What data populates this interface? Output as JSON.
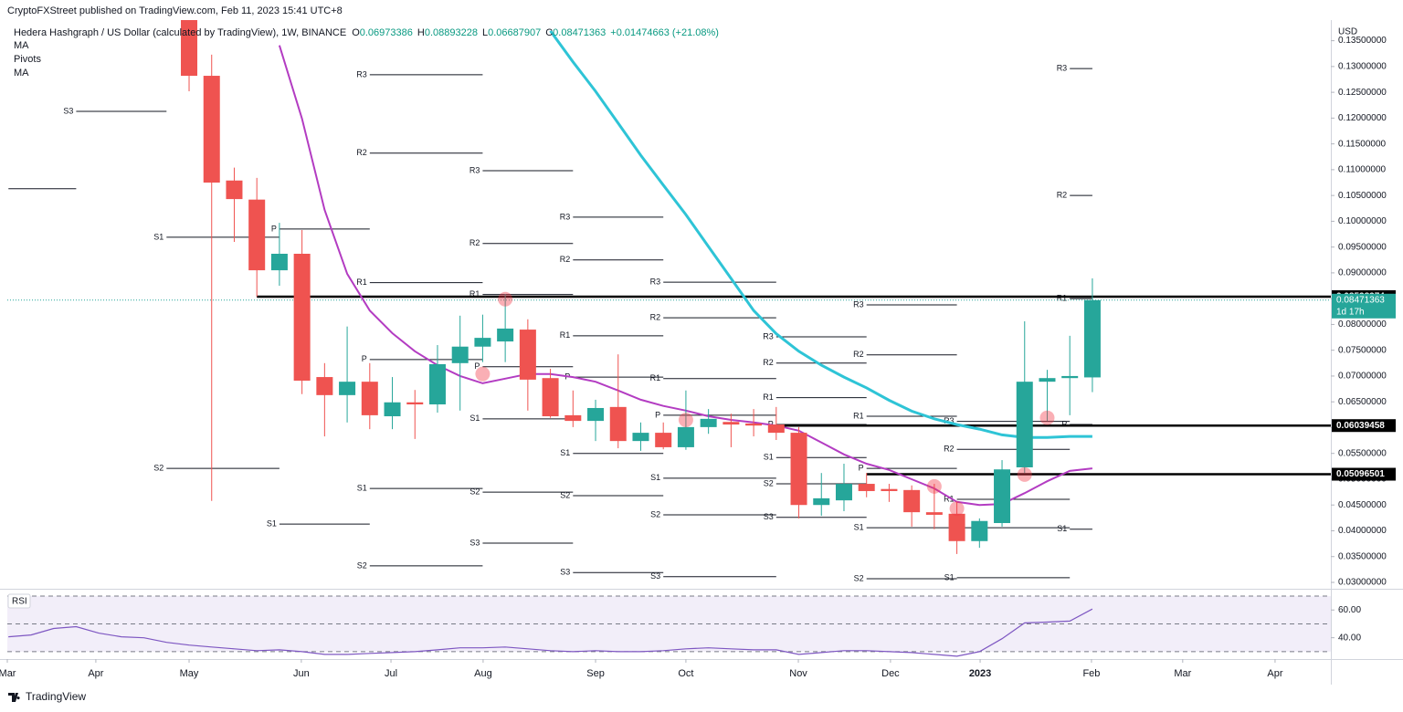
{
  "header": {
    "publisher": "CryptoFXStreet published on TradingView.com, Feb 11, 2023 15:41 UTC+8",
    "symbol": "Hedera Hashgraph / US Dollar (calculated by TradingView), 1W, BINANCE",
    "ohlc": [
      {
        "label": "O",
        "value": 0.06973386
      },
      {
        "label": "H",
        "value": 0.08893228
      },
      {
        "label": "L",
        "value": 0.06687907
      },
      {
        "label": "C",
        "value": 0.08471363
      }
    ],
    "change": "+0.01474663 (+21.08%)"
  },
  "chart_data": [
    {
      "type": "candlestick",
      "currency": "USD",
      "pivots_name": "Pivots",
      "up_color": "#26a69a",
      "down_color": "#ef5350",
      "x": [
        0,
        1,
        2,
        3,
        4,
        5,
        6,
        7,
        8,
        9,
        10,
        11,
        12,
        13,
        14,
        15,
        16,
        17,
        18,
        19,
        20,
        21,
        22,
        23,
        24,
        25,
        26,
        27,
        28,
        29,
        30,
        31,
        32,
        33,
        34,
        35,
        36,
        37,
        38,
        39,
        40
      ],
      "open": [
        0.139,
        0.1282,
        0.1079,
        0.1042,
        0.0905,
        0.0937,
        0.0698,
        0.0663,
        0.0689,
        0.0622,
        0.0649,
        0.0645,
        0.0725,
        0.0757,
        0.0767,
        0.079,
        0.0696,
        0.0624,
        0.0613,
        0.064,
        0.0574,
        0.059,
        0.0562,
        0.0601,
        0.0611,
        0.0608,
        0.0606,
        0.059,
        0.045,
        0.0459,
        0.0491,
        0.0481,
        0.0479,
        0.0436,
        0.0433,
        0.038,
        0.0415,
        0.0523,
        0.0689,
        0.0696,
        0.06973386
      ],
      "high": [
        0.142,
        0.1323,
        0.1104,
        0.1084,
        0.0997,
        0.0983,
        0.0725,
        0.0796,
        0.0725,
        0.0698,
        0.0673,
        0.076,
        0.0817,
        0.0819,
        0.0859,
        0.081,
        0.0714,
        0.0672,
        0.0654,
        0.0742,
        0.061,
        0.061,
        0.0672,
        0.0636,
        0.0627,
        0.0636,
        0.064,
        0.0601,
        0.0512,
        0.053,
        0.0512,
        0.0491,
        0.0488,
        0.0491,
        0.0456,
        0.0424,
        0.0537,
        0.0806,
        0.0712,
        0.0778,
        0.08893228
      ],
      "low": [
        0.1252,
        0.0458,
        0.096,
        0.0854,
        0.0875,
        0.0665,
        0.0583,
        0.061,
        0.0597,
        0.0597,
        0.0578,
        0.0629,
        0.0633,
        0.0727,
        0.0727,
        0.0633,
        0.0619,
        0.0601,
        0.0574,
        0.056,
        0.0555,
        0.0558,
        0.0557,
        0.0588,
        0.0562,
        0.0583,
        0.0576,
        0.0424,
        0.0429,
        0.0438,
        0.0465,
        0.0456,
        0.0408,
        0.0403,
        0.0355,
        0.0367,
        0.0408,
        0.0512,
        0.0613,
        0.0624,
        0.06687907
      ],
      "close": [
        0.1282,
        0.1075,
        0.1043,
        0.0905,
        0.0937,
        0.0691,
        0.0663,
        0.0689,
        0.0624,
        0.0649,
        0.0645,
        0.0723,
        0.0757,
        0.0774,
        0.0792,
        0.0693,
        0.0622,
        0.0613,
        0.0638,
        0.0574,
        0.059,
        0.0562,
        0.0601,
        0.0617,
        0.0606,
        0.0604,
        0.059,
        0.045,
        0.0463,
        0.0491,
        0.0477,
        0.0477,
        0.0436,
        0.0431,
        0.038,
        0.0419,
        0.0519,
        0.0689,
        0.0696,
        0.07,
        0.08471363
      ],
      "series": [
        {
          "name": "MA",
          "color": "#2ec4d6",
          "values": [
            null,
            null,
            null,
            null,
            null,
            null,
            null,
            null,
            null,
            null,
            null,
            null,
            null,
            null,
            null,
            null,
            0.1369,
            0.1309,
            0.1252,
            0.119,
            0.1128,
            0.107,
            0.1013,
            0.0951,
            0.0889,
            0.0827,
            0.0782,
            0.0748,
            0.0721,
            0.0698,
            0.0677,
            0.0653,
            0.0632,
            0.0617,
            0.0606,
            0.0597,
            0.0586,
            0.0581,
            0.0581,
            0.0583,
            0.0583
          ]
        },
        {
          "name": "MA",
          "color": "#b33cc2",
          "values": [
            null,
            null,
            null,
            null,
            0.1341,
            0.1199,
            0.1022,
            0.0898,
            0.0827,
            0.0783,
            0.0748,
            0.0721,
            0.07,
            0.0686,
            0.0695,
            0.0704,
            0.0704,
            0.0698,
            0.0689,
            0.0672,
            0.0654,
            0.0642,
            0.0633,
            0.0622,
            0.0615,
            0.061,
            0.0604,
            0.0594,
            0.0571,
            0.0548,
            0.053,
            0.0518,
            0.05,
            0.0482,
            0.0456,
            0.045,
            0.0452,
            0.0473,
            0.0496,
            0.0516,
            0.0521
          ]
        }
      ],
      "pivots": [
        {
          "label": null,
          "value": 0.1063,
          "from": -8,
          "to": -5
        },
        {
          "label": "S3",
          "value": 0.1213,
          "from": -5,
          "to": -1
        },
        {
          "label": "S1",
          "value": 0.0969,
          "from": -1,
          "to": 4
        },
        {
          "label": "S2",
          "value": 0.0521,
          "from": -1,
          "to": 4
        },
        {
          "label": "P",
          "value": 0.0985,
          "from": 4,
          "to": 8
        },
        {
          "label": "S1",
          "value": 0.0413,
          "from": 4,
          "to": 8
        },
        {
          "label": "R3",
          "value": 0.1284,
          "from": 8,
          "to": 13
        },
        {
          "label": "R2",
          "value": 0.1132,
          "from": 8,
          "to": 13
        },
        {
          "label": "R1",
          "value": 0.0881,
          "from": 8,
          "to": 13
        },
        {
          "label": "P",
          "value": 0.0732,
          "from": 8,
          "to": 13
        },
        {
          "label": "S1",
          "value": 0.0482,
          "from": 8,
          "to": 13
        },
        {
          "label": "S2",
          "value": 0.0332,
          "from": 8,
          "to": 13
        },
        {
          "label": "R3",
          "value": 0.1098,
          "from": 13,
          "to": 17
        },
        {
          "label": "R2",
          "value": 0.0957,
          "from": 13,
          "to": 17
        },
        {
          "label": "R1",
          "value": 0.0858,
          "from": 13,
          "to": 17
        },
        {
          "label": "P",
          "value": 0.0718,
          "from": 13,
          "to": 17
        },
        {
          "label": "S1",
          "value": 0.0617,
          "from": 13,
          "to": 17
        },
        {
          "label": "S2",
          "value": 0.0475,
          "from": 13,
          "to": 17
        },
        {
          "label": "S3",
          "value": 0.0376,
          "from": 13,
          "to": 17
        },
        {
          "label": "R3",
          "value": 0.1008,
          "from": 17,
          "to": 21
        },
        {
          "label": "R2",
          "value": 0.0925,
          "from": 17,
          "to": 21
        },
        {
          "label": "R1",
          "value": 0.0778,
          "from": 17,
          "to": 21
        },
        {
          "label": "P",
          "value": 0.0698,
          "from": 17,
          "to": 21
        },
        {
          "label": "S1",
          "value": 0.055,
          "from": 17,
          "to": 21
        },
        {
          "label": "S2",
          "value": 0.0468,
          "from": 17,
          "to": 21
        },
        {
          "label": "S3",
          "value": 0.0319,
          "from": 17,
          "to": 21
        },
        {
          "label": "R3",
          "value": 0.0882,
          "from": 21,
          "to": 26
        },
        {
          "label": "R2",
          "value": 0.0813,
          "from": 21,
          "to": 26
        },
        {
          "label": "R1",
          "value": 0.0695,
          "from": 21,
          "to": 26
        },
        {
          "label": "P",
          "value": 0.0624,
          "from": 21,
          "to": 26
        },
        {
          "label": "S1",
          "value": 0.0502,
          "from": 21,
          "to": 26
        },
        {
          "label": "S2",
          "value": 0.0431,
          "from": 21,
          "to": 26
        },
        {
          "label": "S3",
          "value": 0.0311,
          "from": 21,
          "to": 26
        },
        {
          "label": "R3",
          "value": 0.0776,
          "from": 26,
          "to": 30
        },
        {
          "label": "R2",
          "value": 0.0725,
          "from": 26,
          "to": 30
        },
        {
          "label": "R1",
          "value": 0.0658,
          "from": 26,
          "to": 30
        },
        {
          "label": "P",
          "value": 0.0606,
          "from": 26,
          "to": 30
        },
        {
          "label": "S1",
          "value": 0.0542,
          "from": 26,
          "to": 30
        },
        {
          "label": "S2",
          "value": 0.0491,
          "from": 26,
          "to": 30
        },
        {
          "label": "S3",
          "value": 0.0426,
          "from": 26,
          "to": 30
        },
        {
          "label": "R3",
          "value": 0.0838,
          "from": 30,
          "to": 34
        },
        {
          "label": "R2",
          "value": 0.0741,
          "from": 30,
          "to": 34
        },
        {
          "label": "R1",
          "value": 0.0622,
          "from": 30,
          "to": 34
        },
        {
          "label": "P",
          "value": 0.0521,
          "from": 30,
          "to": 34
        },
        {
          "label": "S1",
          "value": 0.0406,
          "from": 30,
          "to": 34
        },
        {
          "label": "S2",
          "value": 0.0307,
          "from": 30,
          "to": 34
        },
        {
          "label": "R3",
          "value": 0.0612,
          "from": 34,
          "to": 39
        },
        {
          "label": "R2",
          "value": 0.0558,
          "from": 34,
          "to": 39
        },
        {
          "label": "R1",
          "value": 0.0461,
          "from": 34,
          "to": 39
        },
        {
          "label": "P",
          "value": 0.0406,
          "from": 34,
          "to": 39
        },
        {
          "label": "S1",
          "value": 0.0309,
          "from": 34,
          "to": 39
        },
        {
          "label": "R3",
          "value": 0.1296,
          "from": 39,
          "to": 40
        },
        {
          "label": "R2",
          "value": 0.105,
          "from": 39,
          "to": 40
        },
        {
          "label": "R1",
          "value": 0.085,
          "from": 39,
          "to": 40
        },
        {
          "label": "P",
          "value": 0.0606,
          "from": 39,
          "to": 40
        },
        {
          "label": "S1",
          "value": 0.0403,
          "from": 39,
          "to": 40
        }
      ],
      "levels": [
        {
          "value": 0.08538374,
          "from": 3
        },
        {
          "value": 0.06039458,
          "from": 26
        },
        {
          "value": 0.05096501,
          "from": 30
        }
      ],
      "last": {
        "value": 0.08471363,
        "countdown": "1d 17h"
      },
      "markers": {
        "x": [
          13,
          14,
          22,
          33,
          34,
          37,
          38
        ],
        "values": [
          0.0704,
          0.0849,
          0.0615,
          0.0486,
          0.0443,
          0.0509,
          0.0619
        ]
      },
      "xlim": [
        -8.05,
        50.56
      ],
      "xticks": [
        {
          "value": -8.05,
          "label": "Mar"
        },
        {
          "value": -4.13,
          "label": "Apr"
        },
        {
          "value": 0,
          "label": "May"
        },
        {
          "value": 4.97,
          "label": "Jun"
        },
        {
          "value": 8.94,
          "label": "Jul"
        },
        {
          "value": 13.02,
          "label": "Aug"
        },
        {
          "value": 18,
          "label": "Sep"
        },
        {
          "value": 22,
          "label": "Oct"
        },
        {
          "value": 26.98,
          "label": "Nov"
        },
        {
          "value": 31.06,
          "label": "Dec"
        },
        {
          "value": 35.03,
          "label": "2023"
        },
        {
          "value": 39.96,
          "label": "Feb"
        },
        {
          "value": 44,
          "label": "Mar"
        },
        {
          "value": 48.09,
          "label": "Apr"
        }
      ],
      "ylim": [
        0.02876,
        0.139
      ],
      "yticks": [
        {
          "value": 0.03,
          "label": "0.03000000"
        },
        {
          "value": 0.035,
          "label": "0.03500000"
        },
        {
          "value": 0.04,
          "label": "0.04000000"
        },
        {
          "value": 0.045,
          "label": "0.04500000"
        },
        {
          "value": 0.05,
          "label": "0.05000000"
        },
        {
          "value": 0.055,
          "label": "0.05500000"
        },
        {
          "value": 0.06,
          "label": "0.06000000"
        },
        {
          "value": 0.065,
          "label": "0.06500000"
        },
        {
          "value": 0.07,
          "label": "0.07000000"
        },
        {
          "value": 0.075,
          "label": "0.07500000"
        },
        {
          "value": 0.08,
          "label": "0.08000000"
        },
        {
          "value": 0.085,
          "label": "0.08500000"
        },
        {
          "value": 0.09,
          "label": "0.09000000"
        },
        {
          "value": 0.095,
          "label": "0.09500000"
        },
        {
          "value": 0.1,
          "label": "0.10000000"
        },
        {
          "value": 0.105,
          "label": "0.10500000"
        },
        {
          "value": 0.11,
          "label": "0.11000000"
        },
        {
          "value": 0.115,
          "label": "0.11500000"
        },
        {
          "value": 0.12,
          "label": "0.12000000"
        },
        {
          "value": 0.125,
          "label": "0.12500000"
        },
        {
          "value": 0.13,
          "label": "0.13000000"
        },
        {
          "value": 0.135,
          "label": "0.13500000"
        }
      ]
    },
    {
      "type": "line",
      "title": "RSI",
      "color": "#7e57c2",
      "x": [
        -8,
        -7,
        -6,
        -5,
        -4,
        -3,
        -2,
        -1,
        0,
        1,
        2,
        3,
        4,
        5,
        6,
        7,
        8,
        9,
        10,
        11,
        12,
        13,
        14,
        15,
        16,
        17,
        18,
        19,
        20,
        21,
        22,
        23,
        24,
        25,
        26,
        27,
        28,
        29,
        30,
        31,
        32,
        33,
        34,
        35,
        36,
        37,
        38,
        39,
        40
      ],
      "values": [
        40.7,
        42.0,
        46.7,
        48.0,
        43.3,
        40.7,
        40.0,
        36.7,
        34.7,
        33.3,
        32.0,
        30.7,
        31.3,
        30.0,
        28.0,
        28.0,
        28.7,
        29.3,
        30.0,
        31.3,
        32.7,
        32.7,
        33.3,
        32.0,
        30.7,
        30.0,
        30.7,
        30.0,
        30.0,
        30.7,
        32.0,
        32.7,
        32.0,
        31.3,
        31.3,
        28.0,
        29.3,
        30.7,
        30.7,
        30.0,
        29.3,
        28.0,
        26.7,
        30.0,
        39.3,
        50.7,
        51.3,
        52.0,
        60.7
      ],
      "bands": [
        70,
        50,
        30
      ],
      "ylim": [
        25.3,
        72
      ],
      "yticks": [
        {
          "value": 60,
          "label": "60.00"
        },
        {
          "value": 40,
          "label": "40.00"
        }
      ]
    }
  ],
  "footer": "TradingView"
}
